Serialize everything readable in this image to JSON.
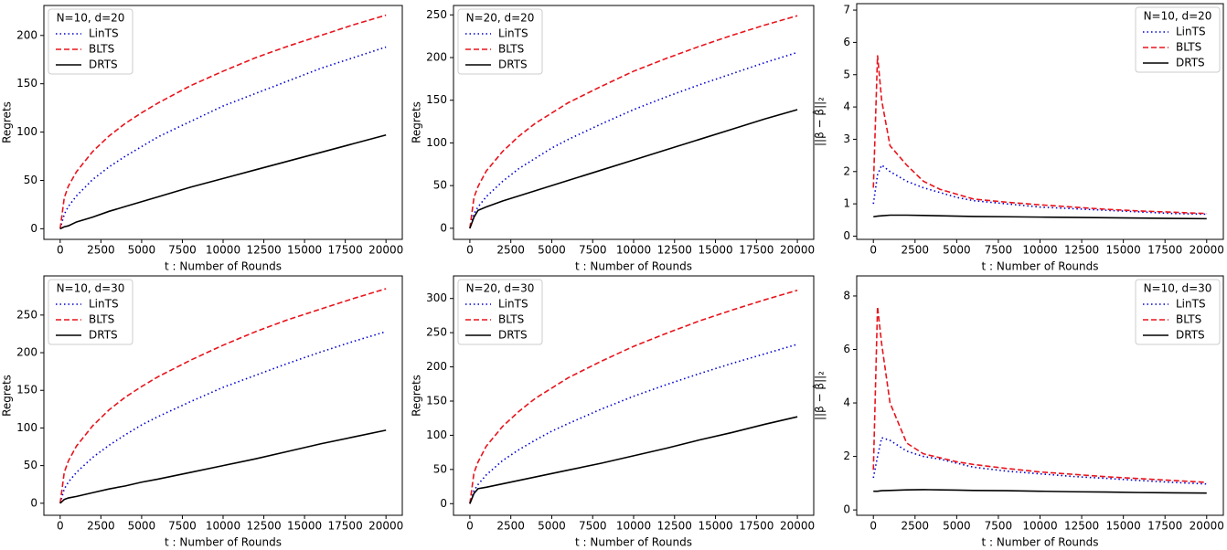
{
  "chart_data": [
    {
      "type": "line",
      "legend_title": "N=10, d=20",
      "legend": "upper left",
      "xlabel": "t : Number of Rounds",
      "ylabel": "Regrets",
      "x": [
        0,
        250,
        500,
        1000,
        2000,
        3000,
        4000,
        5000,
        6000,
        8000,
        10000,
        12000,
        14000,
        16000,
        18000,
        20000
      ],
      "xlim": [
        -1000,
        21000
      ],
      "xticks": [
        0,
        2500,
        5000,
        7500,
        10000,
        12500,
        15000,
        17500,
        20000
      ],
      "ylim": [
        -11,
        231
      ],
      "yticks": [
        0,
        50,
        100,
        150,
        200
      ],
      "series": [
        {
          "name": "LinTS",
          "color": "#0000cc",
          "dash": "dotted",
          "values": [
            0,
            15,
            23,
            34,
            51,
            64,
            75,
            85,
            95,
            111,
            127,
            140,
            153,
            166,
            177,
            188
          ]
        },
        {
          "name": "BLTS",
          "color": "#e8141c",
          "dash": "dashed",
          "values": [
            0,
            32,
            44,
            59,
            80,
            96,
            109,
            120,
            130,
            148,
            163,
            177,
            189,
            200,
            211,
            221
          ]
        },
        {
          "name": "DRTS",
          "color": "#000000",
          "dash": "solid",
          "values": [
            0,
            2,
            3,
            7,
            12,
            18,
            23,
            28,
            33,
            43,
            52,
            61,
            70,
            79,
            88,
            97
          ]
        }
      ]
    },
    {
      "type": "line",
      "legend_title": "N=20, d=20",
      "legend": "upper left",
      "xlabel": "t : Number of Rounds",
      "ylabel": "Regrets",
      "x": [
        0,
        250,
        500,
        1000,
        2000,
        3000,
        4000,
        5000,
        6000,
        8000,
        10000,
        12000,
        14000,
        16000,
        18000,
        20000
      ],
      "xlim": [
        -1000,
        21000
      ],
      "xticks": [
        0,
        2500,
        5000,
        7500,
        10000,
        12500,
        15000,
        17500,
        20000
      ],
      "ylim": [
        -13,
        261
      ],
      "yticks": [
        0,
        50,
        100,
        150,
        200,
        250
      ],
      "series": [
        {
          "name": "LinTS",
          "color": "#0000cc",
          "dash": "dotted",
          "values": [
            0,
            17,
            25,
            37,
            55,
            70,
            82,
            94,
            104,
            122,
            139,
            154,
            168,
            181,
            194,
            206
          ]
        },
        {
          "name": "BLTS",
          "color": "#e8141c",
          "dash": "dashed",
          "values": [
            0,
            36,
            49,
            67,
            90,
            108,
            123,
            135,
            147,
            166,
            184,
            199,
            213,
            226,
            238,
            249
          ]
        },
        {
          "name": "DRTS",
          "color": "#000000",
          "dash": "solid",
          "values": [
            0,
            13,
            21,
            25,
            32,
            38,
            44,
            50,
            56,
            68,
            80,
            92,
            104,
            116,
            128,
            139
          ]
        }
      ]
    },
    {
      "type": "line",
      "legend_title": "N=10, d=20",
      "legend": "upper right",
      "xlabel": "t : Number of Rounds",
      "ylabel": "||β − β̂||₂",
      "x": [
        0,
        250,
        500,
        1000,
        2000,
        3000,
        4000,
        5000,
        6000,
        8000,
        10000,
        12000,
        14000,
        16000,
        18000,
        20000
      ],
      "xlim": [
        -1000,
        21000
      ],
      "xticks": [
        0,
        2500,
        5000,
        7500,
        10000,
        12500,
        15000,
        17500,
        20000
      ],
      "ylim": [
        -0.1,
        7.2
      ],
      "yticks": [
        0,
        1,
        2,
        3,
        4,
        5,
        6,
        7
      ],
      "series": [
        {
          "name": "LinTS",
          "color": "#0000cc",
          "dash": "dotted",
          "values": [
            1.0,
            1.9,
            2.2,
            2.0,
            1.7,
            1.5,
            1.35,
            1.2,
            1.1,
            1.0,
            0.9,
            0.85,
            0.8,
            0.75,
            0.7,
            0.68
          ]
        },
        {
          "name": "BLTS",
          "color": "#e8141c",
          "dash": "dashed",
          "values": [
            1.5,
            5.6,
            4.2,
            2.8,
            2.2,
            1.7,
            1.45,
            1.3,
            1.15,
            1.05,
            0.97,
            0.9,
            0.83,
            0.78,
            0.74,
            0.7
          ]
        },
        {
          "name": "DRTS",
          "color": "#000000",
          "dash": "solid",
          "values": [
            0.6,
            0.62,
            0.63,
            0.65,
            0.65,
            0.64,
            0.63,
            0.62,
            0.61,
            0.6,
            0.59,
            0.58,
            0.57,
            0.56,
            0.55,
            0.54
          ]
        }
      ]
    },
    {
      "type": "line",
      "legend_title": "N=10, d=30",
      "legend": "upper left",
      "xlabel": "t : Number of Rounds",
      "ylabel": "Regrets",
      "x": [
        0,
        250,
        500,
        1000,
        2000,
        3000,
        4000,
        5000,
        6000,
        8000,
        10000,
        12000,
        14000,
        16000,
        18000,
        20000
      ],
      "xlim": [
        -1000,
        21000
      ],
      "xticks": [
        0,
        2500,
        5000,
        7500,
        10000,
        12500,
        15000,
        17500,
        20000
      ],
      "ylim": [
        -16,
        302
      ],
      "yticks": [
        0,
        50,
        100,
        150,
        200,
        250
      ],
      "series": [
        {
          "name": "LinTS",
          "color": "#0000cc",
          "dash": "dotted",
          "values": [
            0,
            19,
            28,
            41,
            61,
            77,
            91,
            104,
            115,
            135,
            154,
            170,
            186,
            201,
            215,
            228
          ]
        },
        {
          "name": "BLTS",
          "color": "#e8141c",
          "dash": "dashed",
          "values": [
            0,
            41,
            56,
            76,
            103,
            124,
            141,
            155,
            168,
            190,
            210,
            228,
            244,
            258,
            272,
            285
          ]
        },
        {
          "name": "DRTS",
          "color": "#000000",
          "dash": "solid",
          "values": [
            0,
            5,
            7,
            9,
            14,
            19,
            23,
            28,
            32,
            41,
            50,
            59,
            69,
            79,
            88,
            97
          ]
        }
      ]
    },
    {
      "type": "line",
      "legend_title": "N=20, d=30",
      "legend": "upper left",
      "xlabel": "t : Number of Rounds",
      "ylabel": "Regrets",
      "x": [
        0,
        250,
        500,
        1000,
        2000,
        3000,
        4000,
        5000,
        6000,
        8000,
        10000,
        12000,
        14000,
        16000,
        18000,
        20000
      ],
      "xlim": [
        -1000,
        21000
      ],
      "xticks": [
        0,
        2500,
        5000,
        7500,
        10000,
        12500,
        15000,
        17500,
        20000
      ],
      "ylim": [
        -17,
        333
      ],
      "yticks": [
        0,
        50,
        100,
        150,
        200,
        250,
        300
      ],
      "series": [
        {
          "name": "LinTS",
          "color": "#0000cc",
          "dash": "dotted",
          "values": [
            0,
            19,
            28,
            42,
            63,
            79,
            93,
            106,
            117,
            138,
            157,
            174,
            190,
            205,
            219,
            233
          ]
        },
        {
          "name": "BLTS",
          "color": "#e8141c",
          "dash": "dashed",
          "values": [
            0,
            45,
            61,
            84,
            113,
            135,
            154,
            169,
            184,
            208,
            230,
            249,
            267,
            283,
            298,
            312
          ]
        },
        {
          "name": "DRTS",
          "color": "#000000",
          "dash": "solid",
          "values": [
            0,
            15,
            22,
            24,
            29,
            34,
            39,
            44,
            49,
            59,
            70,
            81,
            93,
            104,
            116,
            127
          ]
        }
      ]
    },
    {
      "type": "line",
      "legend_title": "N=10, d=30",
      "legend": "upper right",
      "xlabel": "t : Number of Rounds",
      "ylabel": "||β − β̂||₂",
      "x": [
        0,
        250,
        500,
        1000,
        2000,
        3000,
        4000,
        5000,
        6000,
        8000,
        10000,
        12000,
        14000,
        16000,
        18000,
        20000
      ],
      "xlim": [
        -1000,
        21000
      ],
      "xticks": [
        0,
        2500,
        5000,
        7500,
        10000,
        12500,
        15000,
        17500,
        20000
      ],
      "ylim": [
        -0.2,
        8.75
      ],
      "yticks": [
        0,
        2,
        4,
        6,
        8
      ],
      "series": [
        {
          "name": "LinTS",
          "color": "#0000cc",
          "dash": "dotted",
          "values": [
            1.2,
            2.0,
            2.7,
            2.6,
            2.2,
            2.0,
            1.9,
            1.75,
            1.6,
            1.45,
            1.35,
            1.25,
            1.18,
            1.1,
            1.03,
            0.97
          ]
        },
        {
          "name": "BLTS",
          "color": "#e8141c",
          "dash": "dashed",
          "values": [
            1.5,
            7.6,
            6.2,
            4.0,
            2.5,
            2.1,
            1.95,
            1.8,
            1.7,
            1.55,
            1.42,
            1.33,
            1.24,
            1.17,
            1.1,
            1.03
          ]
        },
        {
          "name": "DRTS",
          "color": "#000000",
          "dash": "solid",
          "values": [
            0.7,
            0.7,
            0.72,
            0.73,
            0.75,
            0.76,
            0.75,
            0.74,
            0.73,
            0.72,
            0.7,
            0.68,
            0.67,
            0.65,
            0.64,
            0.63
          ]
        }
      ]
    }
  ]
}
